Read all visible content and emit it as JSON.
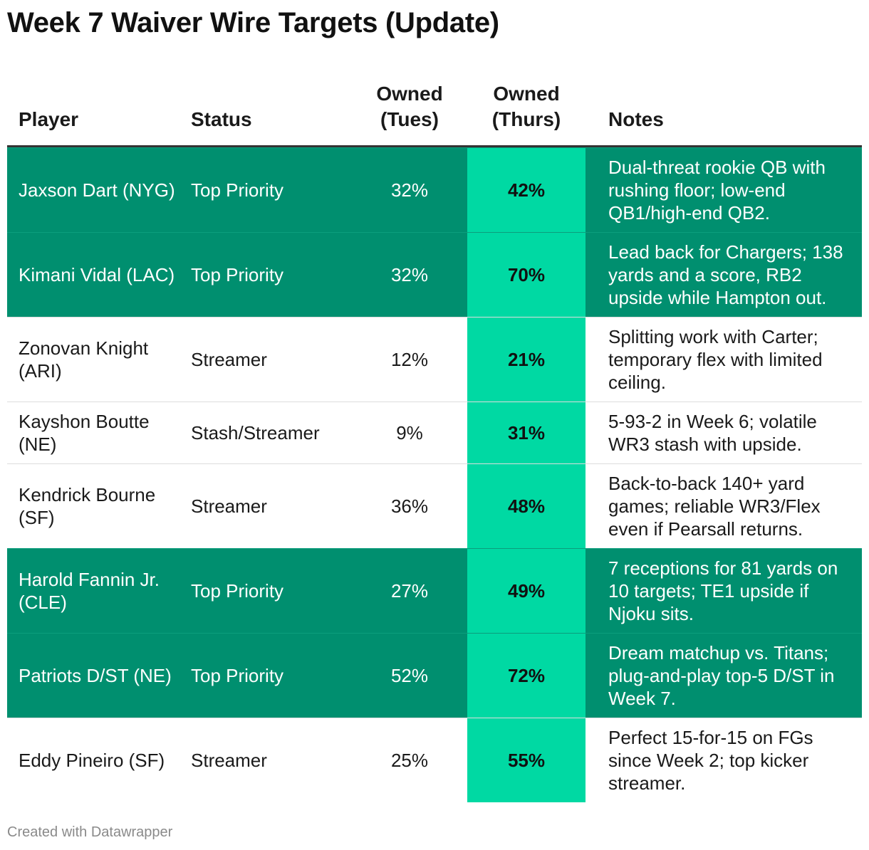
{
  "title": "Week 7 Waiver Wire Targets (Update)",
  "footer": "Created with Datawrapper",
  "chart_data": {
    "type": "table",
    "title": "Week 7 Waiver Wire Targets (Update)",
    "columns": {
      "player": "Player",
      "status": "Status",
      "tues_line1": "Owned",
      "tues_line2": "(Tues)",
      "thurs_line1": "Owned",
      "thurs_line2": "(Thurs)",
      "notes": "Notes"
    },
    "rows": [
      {
        "player": "Jaxson Dart (NYG)",
        "status": "Top Priority",
        "tues": "32%",
        "thurs": "42%",
        "notes": "Dual-threat rookie QB with rushing floor; low-end QB1/high-end QB2.",
        "highlight": true
      },
      {
        "player": "Kimani Vidal (LAC)",
        "status": "Top Priority",
        "tues": "32%",
        "thurs": "70%",
        "notes": "Lead back for Chargers; 138 yards and a score, RB2 upside while Hampton out.",
        "highlight": true
      },
      {
        "player": "Zonovan Knight (ARI)",
        "status": "Streamer",
        "tues": "12%",
        "thurs": "21%",
        "notes": "Splitting work with Carter; temporary flex with limited ceiling.",
        "highlight": false
      },
      {
        "player": "Kayshon Boutte (NE)",
        "status": "Stash/Streamer",
        "tues": "9%",
        "thurs": "31%",
        "notes": "5-93-2 in Week 6; volatile WR3 stash with upside.",
        "highlight": false
      },
      {
        "player": "Kendrick Bourne (SF)",
        "status": "Streamer",
        "tues": "36%",
        "thurs": "48%",
        "notes": "Back-to-back 140+ yard games; reliable WR3/Flex even if Pearsall returns.",
        "highlight": false
      },
      {
        "player": "Harold Fannin Jr. (CLE)",
        "status": "Top Priority",
        "tues": "27%",
        "thurs": "49%",
        "notes": "7 receptions for 81 yards on 10 targets; TE1 upside if Njoku sits.",
        "highlight": true
      },
      {
        "player": "Patriots D/ST (NE)",
        "status": "Top Priority",
        "tues": "52%",
        "thurs": "72%",
        "notes": "Dream matchup vs. Titans; plug-and-play top-5 D/ST in Week 7.",
        "highlight": true
      },
      {
        "player": "Eddy Pineiro (SF)",
        "status": "Streamer",
        "tues": "25%",
        "thurs": "55%",
        "notes": "Perfect 15-for-15 on FGs since Week 2; top kicker streamer.",
        "highlight": false
      }
    ]
  }
}
